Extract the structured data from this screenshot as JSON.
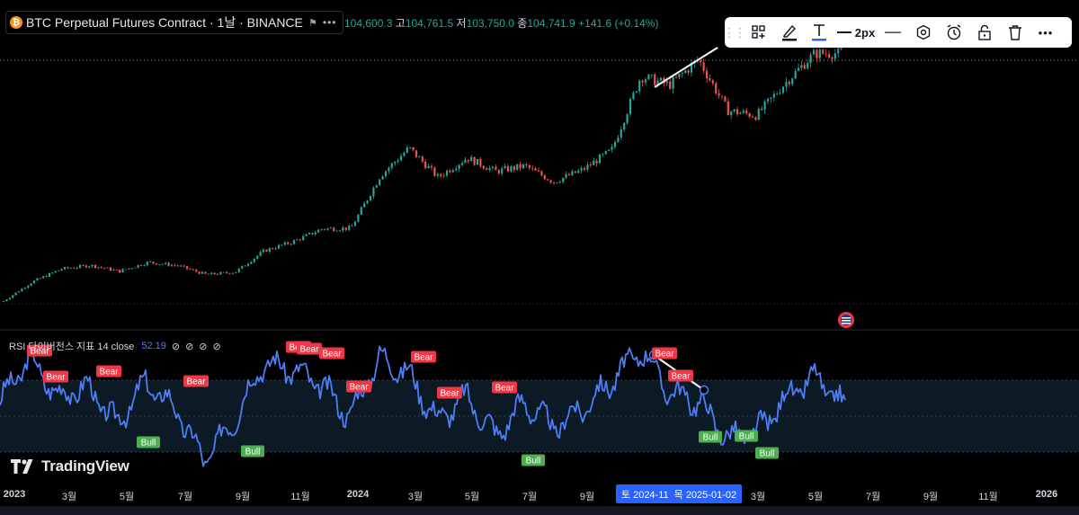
{
  "header": {
    "symbol_name": "BTC Perpetual Futures Contract",
    "symbol_meta": "· 1날 · BINANCE",
    "more_icon": "more-horizontal-icon",
    "ohlc": {
      "open_value": "104,600.3",
      "high_label": "고",
      "high_value": "104,761.5",
      "low_label": "저",
      "low_value": "103,750.0",
      "close_label": "종",
      "close_value": "104,741.9",
      "change": "+141.6 (+0.14%)"
    },
    "colors": {
      "up": "#26a69a",
      "down": "#ef5350"
    }
  },
  "drawing_toolbar": {
    "line_width_label": "2px",
    "icons": [
      "drag-handle-icon",
      "templates-icon",
      "pencil-icon",
      "text-icon",
      "line-width-icon",
      "line-style-icon",
      "settings-hexagon-icon",
      "alert-clock-icon",
      "lock-icon",
      "trash-icon",
      "more-icon"
    ],
    "accent_color": "#2962ff"
  },
  "indicator": {
    "title": "RSI 다이버전스 지표 14 close",
    "value": "52.19",
    "line_color": "#4f7df5",
    "bear_color": "#f23645",
    "bull_color": "#4caf50",
    "icons": [
      "eye-off-icon",
      "eye-off-icon",
      "eye-off-icon",
      "eye-off-icon"
    ]
  },
  "watermark": {
    "text": "TradingView"
  },
  "time_axis": {
    "ticks": [
      "2023",
      "3월",
      "5월",
      "7월",
      "9월",
      "11월",
      "2024",
      "3월",
      "5월",
      "7월",
      "9월",
      "11월",
      "3월",
      "5월",
      "7월",
      "9월",
      "11월",
      "2026"
    ],
    "bold_ticks": [
      "2023",
      "2024",
      "2026"
    ],
    "crosshair": {
      "left": "토 2024-11",
      "right": "목 2025-01-02"
    }
  },
  "chart_data": [
    {
      "type": "candlestick",
      "title": "BTC Perpetual Futures Contract · 1날 · BINANCE",
      "x_range": [
        "2023-01",
        "2026-01"
      ],
      "price_trend": [
        {
          "date": "2023-01",
          "close": 16600
        },
        {
          "date": "2023-02",
          "close": 23500
        },
        {
          "date": "2023-03",
          "close": 28000
        },
        {
          "date": "2023-04",
          "close": 29300
        },
        {
          "date": "2023-05",
          "close": 27200
        },
        {
          "date": "2023-06",
          "close": 30400
        },
        {
          "date": "2023-07",
          "close": 29200
        },
        {
          "date": "2023-08",
          "close": 26000
        },
        {
          "date": "2023-09",
          "close": 26900
        },
        {
          "date": "2023-10",
          "close": 34500
        },
        {
          "date": "2023-11",
          "close": 37700
        },
        {
          "date": "2023-12",
          "close": 42300
        },
        {
          "date": "2024-01",
          "close": 42500
        },
        {
          "date": "2024-02",
          "close": 61000
        },
        {
          "date": "2024-03",
          "close": 71000
        },
        {
          "date": "2024-04",
          "close": 60600
        },
        {
          "date": "2024-05",
          "close": 67500
        },
        {
          "date": "2024-06",
          "close": 62700
        },
        {
          "date": "2024-07",
          "close": 64600
        },
        {
          "date": "2024-08",
          "close": 59000
        },
        {
          "date": "2024-09",
          "close": 63300
        },
        {
          "date": "2024-10",
          "close": 70200
        },
        {
          "date": "2024-11",
          "close": 96400
        },
        {
          "date": "2024-12",
          "close": 93400
        },
        {
          "date": "2025-01",
          "close": 102400
        },
        {
          "date": "2025-02",
          "close": 84300
        },
        {
          "date": "2025-03",
          "close": 82500
        },
        {
          "date": "2025-04",
          "close": 94200
        },
        {
          "date": "2025-05",
          "close": 104600
        },
        {
          "date": "2025-05-end",
          "close": 104742
        }
      ],
      "last_close": 104741.9,
      "annotations": [
        "trend-line-drawing"
      ]
    },
    {
      "type": "line",
      "title": "RSI 다이버전스 지표 14 close",
      "last_value": 52.19,
      "rsi_trend": [
        {
          "date": "2023-01",
          "value": 55
        },
        {
          "date": "2023-02",
          "value": 78
        },
        {
          "date": "2023-03",
          "value": 58
        },
        {
          "date": "2023-04",
          "value": 63
        },
        {
          "date": "2023-05",
          "value": 44
        },
        {
          "date": "2023-06",
          "value": 65
        },
        {
          "date": "2023-07",
          "value": 52
        },
        {
          "date": "2023-08",
          "value": 25
        },
        {
          "date": "2023-09",
          "value": 45
        },
        {
          "date": "2023-10",
          "value": 75
        },
        {
          "date": "2023-11",
          "value": 72
        },
        {
          "date": "2023-12",
          "value": 64
        },
        {
          "date": "2024-01",
          "value": 48
        },
        {
          "date": "2024-02",
          "value": 78
        },
        {
          "date": "2024-03",
          "value": 70
        },
        {
          "date": "2024-04",
          "value": 46
        },
        {
          "date": "2024-05",
          "value": 58
        },
        {
          "date": "2024-06",
          "value": 38
        },
        {
          "date": "2024-07",
          "value": 55
        },
        {
          "date": "2024-08",
          "value": 42
        },
        {
          "date": "2024-09",
          "value": 52
        },
        {
          "date": "2024-10",
          "value": 66
        },
        {
          "date": "2024-11",
          "value": 82
        },
        {
          "date": "2024-12",
          "value": 60
        },
        {
          "date": "2025-01",
          "value": 55
        },
        {
          "date": "2025-02",
          "value": 36
        },
        {
          "date": "2025-03",
          "value": 40
        },
        {
          "date": "2025-04",
          "value": 58
        },
        {
          "date": "2025-05",
          "value": 68
        },
        {
          "date": "2025-05-end",
          "value": 52
        }
      ],
      "signals": [
        {
          "label": "Bear",
          "date": "2023-02"
        },
        {
          "label": "Bear",
          "date": "2023-02"
        },
        {
          "label": "Bear",
          "date": "2023-04"
        },
        {
          "label": "Bear",
          "date": "2023-06"
        },
        {
          "label": "Bull",
          "date": "2023-05"
        },
        {
          "label": "Bull",
          "date": "2023-09"
        },
        {
          "label": "Bear",
          "date": "2023-10"
        },
        {
          "label": "Bear",
          "date": "2023-11"
        },
        {
          "label": "Bear",
          "date": "2023-11"
        },
        {
          "label": "Bear",
          "date": "2024-01"
        },
        {
          "label": "Bear",
          "date": "2024-03"
        },
        {
          "label": "Bear",
          "date": "2024-04"
        },
        {
          "label": "Bear",
          "date": "2024-06"
        },
        {
          "label": "Bull",
          "date": "2024-07"
        },
        {
          "label": "Bear",
          "date": "2024-11"
        },
        {
          "label": "Bear",
          "date": "2024-12"
        },
        {
          "label": "Bull",
          "date": "2025-01"
        },
        {
          "label": "Bull",
          "date": "2025-02"
        },
        {
          "label": "Bull",
          "date": "2025-03"
        }
      ],
      "bands": [
        30,
        70
      ]
    }
  ]
}
